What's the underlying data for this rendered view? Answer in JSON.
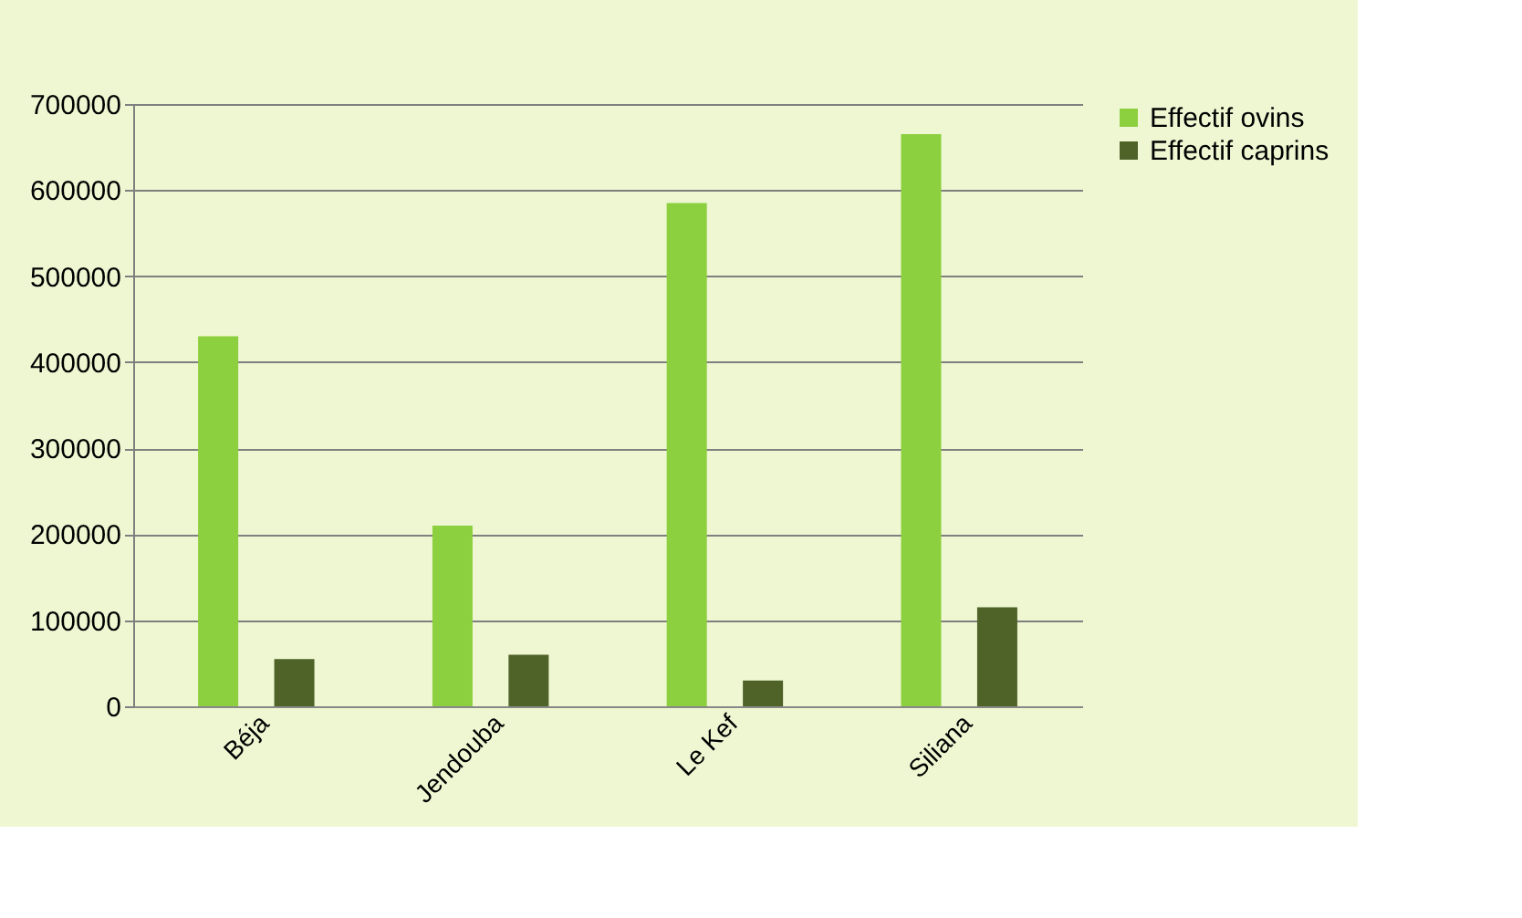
{
  "chart_data": {
    "type": "bar",
    "categories": [
      "Béja",
      "Jendouba",
      "Le Kef",
      "Siliana"
    ],
    "series": [
      {
        "name": "Effectif ovins",
        "color": "#8ccf3f",
        "values": [
          430000,
          210000,
          585000,
          665000
        ]
      },
      {
        "name": "Effectif caprins",
        "color": "#4f6228",
        "values": [
          55000,
          60000,
          30000,
          115000
        ]
      }
    ],
    "ylim": [
      0,
      700000
    ],
    "yticks": [
      0,
      100000,
      200000,
      300000,
      400000,
      500000,
      600000,
      700000
    ],
    "grid": "y",
    "legend": "right"
  }
}
